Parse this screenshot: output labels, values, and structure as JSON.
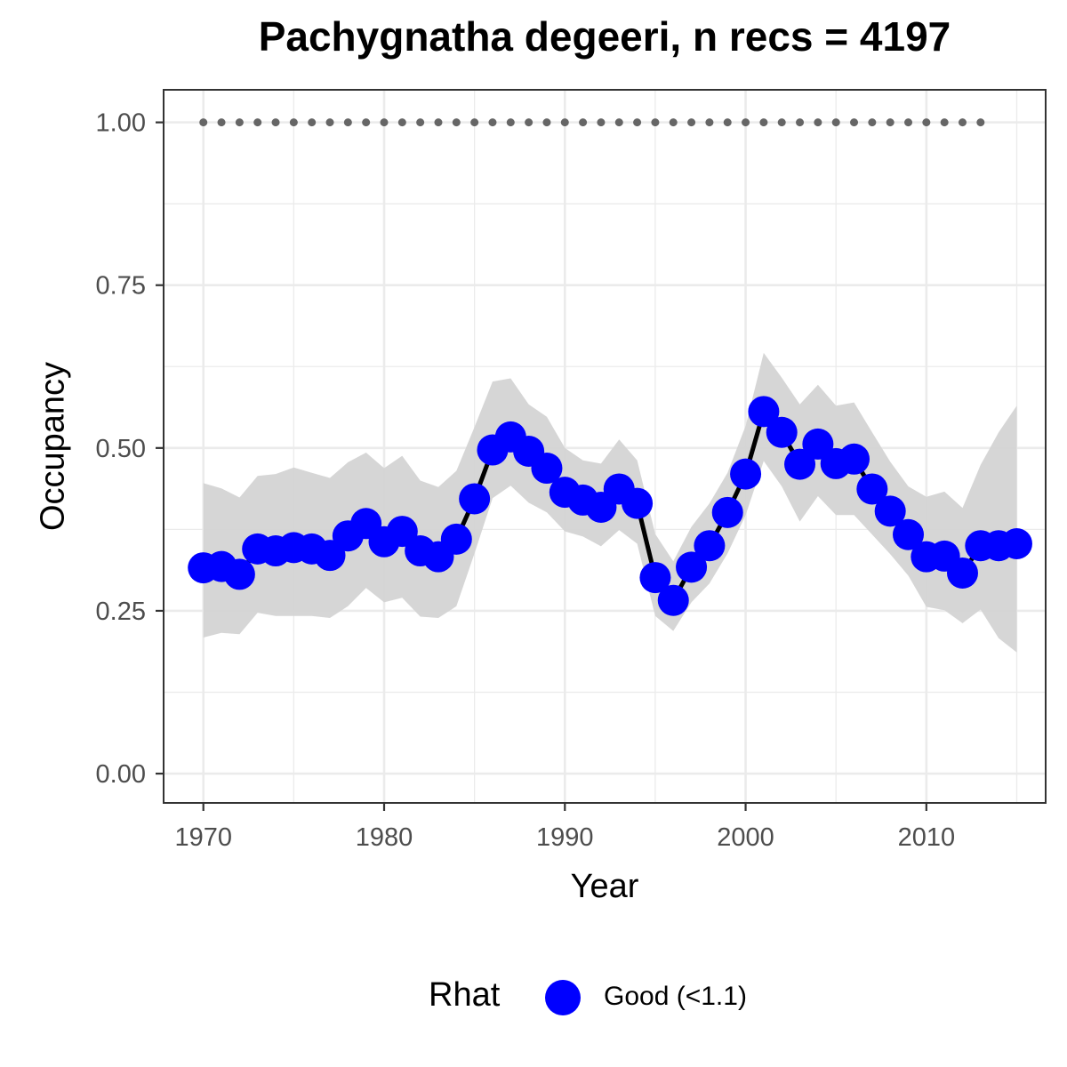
{
  "chart_data": {
    "type": "line",
    "title": "Pachygnatha degeeri, n recs = 4197",
    "xlabel": "Year",
    "ylabel": "Occupancy",
    "xlim": [
      1967.8,
      2016.6
    ],
    "ylim": [
      -0.045,
      1.05
    ],
    "x_ticks": [
      1970,
      1980,
      1990,
      2000,
      2010
    ],
    "x_tick_labels": [
      "1970",
      "1980",
      "1990",
      "2000",
      "2010"
    ],
    "y_ticks": [
      0.0,
      0.25,
      0.5,
      0.75,
      1.0
    ],
    "y_tick_labels": [
      "0.00",
      "0.25",
      "0.50",
      "0.75",
      "1.00"
    ],
    "grid": true,
    "legend_position": "bottom",
    "x": [
      1970,
      1971,
      1972,
      1973,
      1974,
      1975,
      1976,
      1977,
      1978,
      1979,
      1980,
      1981,
      1982,
      1983,
      1984,
      1985,
      1986,
      1987,
      1988,
      1989,
      1990,
      1991,
      1992,
      1993,
      1994,
      1995,
      1996,
      1997,
      1998,
      1999,
      2000,
      2001,
      2002,
      2003,
      2004,
      2005,
      2006,
      2007,
      2008,
      2009,
      2010,
      2011,
      2012,
      2013,
      2014,
      2015
    ],
    "series": [
      {
        "name": "Good (<1.1)",
        "color": "#0000ff",
        "line_color": "#000000",
        "values": [
          0.316,
          0.318,
          0.306,
          0.345,
          0.342,
          0.347,
          0.345,
          0.335,
          0.365,
          0.384,
          0.356,
          0.372,
          0.342,
          0.333,
          0.36,
          0.422,
          0.497,
          0.517,
          0.495,
          0.469,
          0.432,
          0.42,
          0.409,
          0.437,
          0.415,
          0.301,
          0.266,
          0.317,
          0.35,
          0.401,
          0.46,
          0.556,
          0.524,
          0.475,
          0.506,
          0.476,
          0.483,
          0.437,
          0.403,
          0.367,
          0.333,
          0.334,
          0.308,
          0.35,
          0.35,
          0.353
        ],
        "lower": [
          0.209,
          0.216,
          0.214,
          0.247,
          0.242,
          0.242,
          0.242,
          0.239,
          0.257,
          0.285,
          0.263,
          0.27,
          0.241,
          0.239,
          0.257,
          0.338,
          0.423,
          0.442,
          0.416,
          0.401,
          0.372,
          0.364,
          0.349,
          0.374,
          0.353,
          0.242,
          0.219,
          0.263,
          0.292,
          0.338,
          0.397,
          0.48,
          0.441,
          0.387,
          0.426,
          0.397,
          0.397,
          0.367,
          0.337,
          0.304,
          0.256,
          0.251,
          0.231,
          0.252,
          0.208,
          0.186
        ],
        "upper": [
          0.446,
          0.438,
          0.424,
          0.457,
          0.46,
          0.47,
          0.462,
          0.454,
          0.478,
          0.493,
          0.469,
          0.488,
          0.45,
          0.44,
          0.465,
          0.532,
          0.602,
          0.607,
          0.567,
          0.548,
          0.5,
          0.481,
          0.476,
          0.513,
          0.481,
          0.368,
          0.326,
          0.379,
          0.415,
          0.462,
          0.534,
          0.646,
          0.608,
          0.567,
          0.597,
          0.565,
          0.57,
          0.524,
          0.479,
          0.441,
          0.425,
          0.433,
          0.408,
          0.474,
          0.524,
          0.565
        ]
      }
    ],
    "reference_dots": {
      "y": 1.0,
      "x": [
        1970,
        1971,
        1972,
        1973,
        1974,
        1975,
        1976,
        1977,
        1978,
        1979,
        1980,
        1981,
        1982,
        1983,
        1984,
        1985,
        1986,
        1987,
        1988,
        1989,
        1990,
        1991,
        1992,
        1993,
        1994,
        1995,
        1996,
        1997,
        1998,
        1999,
        2000,
        2001,
        2002,
        2003,
        2004,
        2005,
        2006,
        2007,
        2008,
        2009,
        2010,
        2011,
        2012,
        2013
      ],
      "color": "#666666"
    },
    "ribbon_color": "#d4d4d4"
  },
  "legend": {
    "title": "Rhat",
    "label": "Good (<1.1)",
    "color": "#0000ff"
  }
}
